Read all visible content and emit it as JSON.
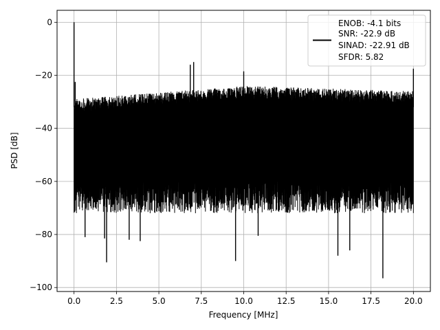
{
  "chart_data": {
    "type": "line",
    "xlabel": "Frequency [MHz]",
    "ylabel": "PSD [dB]",
    "xlim": [
      -1.0,
      21.0
    ],
    "ylim": [
      -101.5,
      4.5
    ],
    "xticks": [
      0.0,
      2.5,
      5.0,
      7.5,
      10.0,
      12.5,
      15.0,
      17.5,
      20.0
    ],
    "xtick_labels": [
      "0.0",
      "2.5",
      "5.0",
      "7.5",
      "10.0",
      "12.5",
      "15.0",
      "17.5",
      "20.0"
    ],
    "yticks": [
      0,
      -20,
      -40,
      -60,
      -80,
      -100
    ],
    "ytick_labels": [
      "0",
      "−20",
      "−40",
      "−60",
      "−80",
      "−100"
    ],
    "grid": true,
    "legend_position": "top-right",
    "legend": {
      "line_color": "#000000",
      "lines": [
        "ENOB: -4.1 bits",
        "SNR: -22.9 dB",
        "SINAD: -22.91 dB",
        "SFDR: 5.82"
      ]
    },
    "series": [
      {
        "color": "#000000",
        "noise_floor": {
          "upper_start": -29,
          "upper_mid": -24,
          "upper_end": -26,
          "lower_typical": -66,
          "lower_extreme": -90
        },
        "peaks": [
          {
            "x": 0.0,
            "y": 0.0
          },
          {
            "x": 0.07,
            "y": -22.5
          },
          {
            "x": 6.85,
            "y": -16.0
          },
          {
            "x": 7.05,
            "y": -15.0
          },
          {
            "x": 10.0,
            "y": -18.5
          },
          {
            "x": 20.0,
            "y": -17.5
          }
        ],
        "dips": [
          {
            "x": 0.65,
            "y": -81
          },
          {
            "x": 1.8,
            "y": -81.5
          },
          {
            "x": 1.92,
            "y": -90.5
          },
          {
            "x": 3.25,
            "y": -82
          },
          {
            "x": 3.9,
            "y": -82.5
          },
          {
            "x": 9.52,
            "y": -90
          },
          {
            "x": 10.85,
            "y": -80.5
          },
          {
            "x": 15.55,
            "y": -88
          },
          {
            "x": 16.25,
            "y": -86
          },
          {
            "x": 18.2,
            "y": -96.5
          }
        ]
      }
    ]
  }
}
